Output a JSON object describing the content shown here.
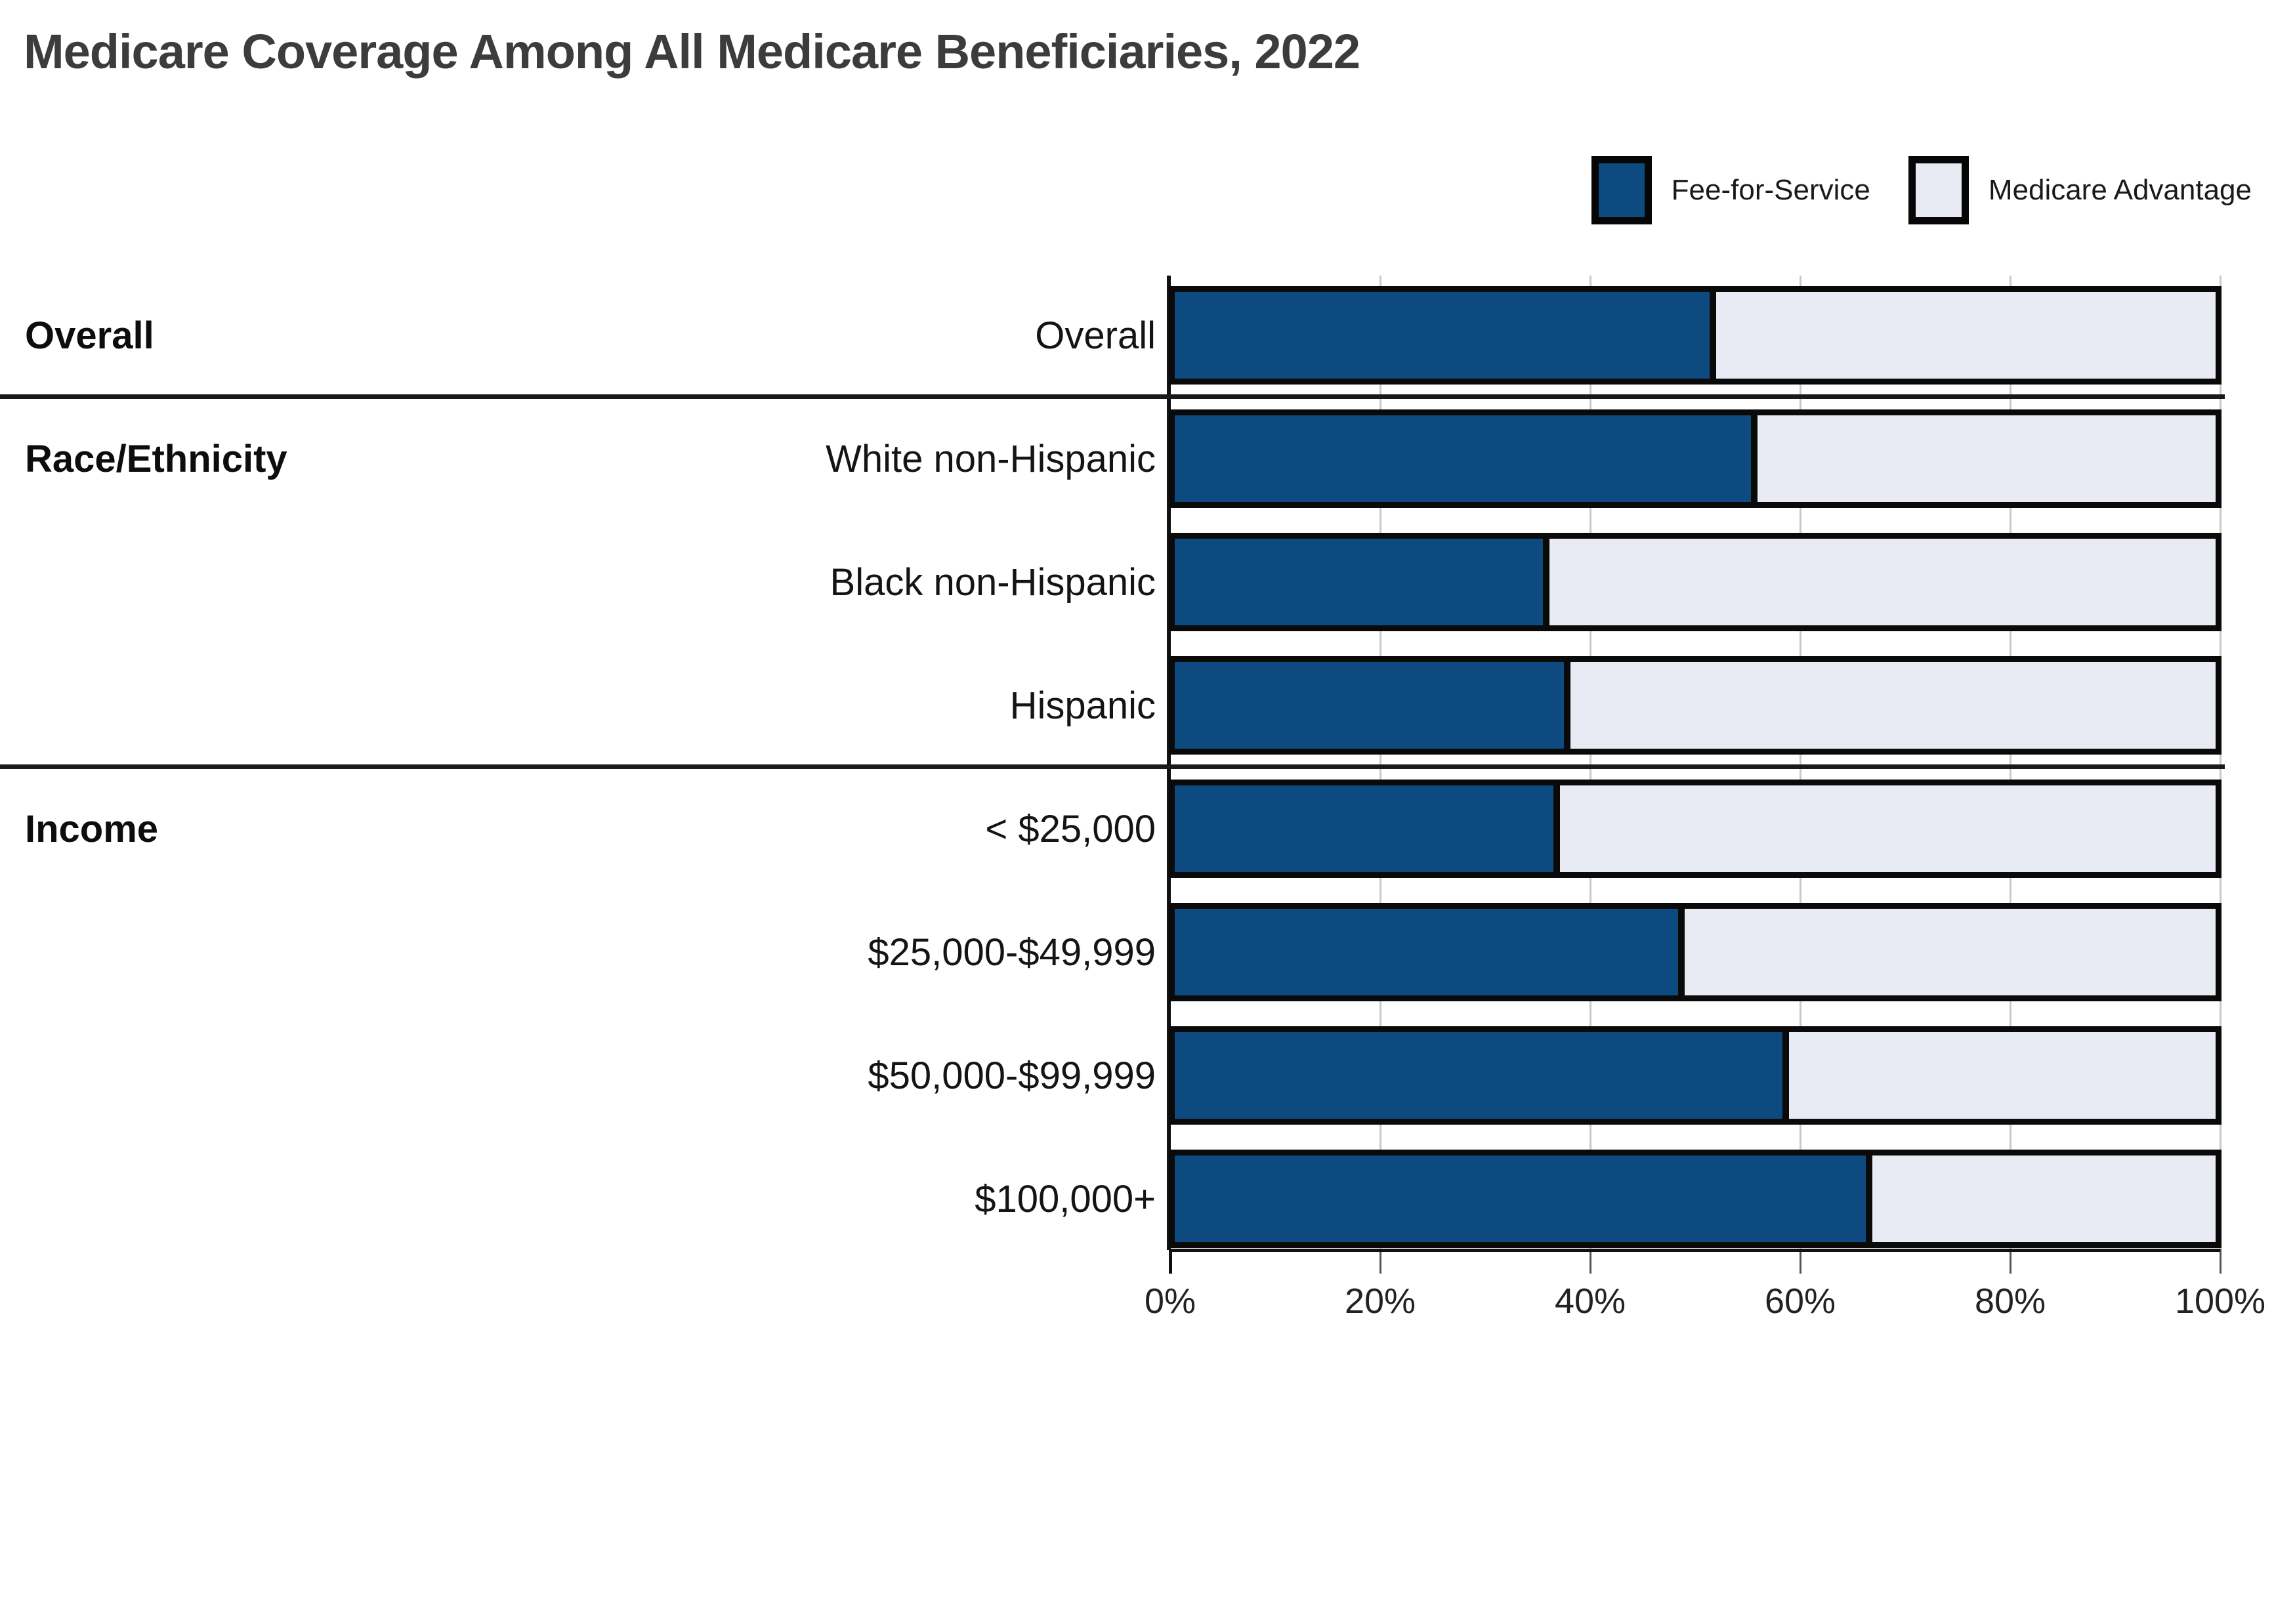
{
  "title": "Medicare Coverage Among All Medicare Beneficiaries, 2022",
  "legend": {
    "items": [
      {
        "label": "Fee-for-Service",
        "color": "#0d4a7f"
      },
      {
        "label": "Medicare Advantage",
        "color": "#e8ebf4"
      }
    ]
  },
  "colors": {
    "fee_for_service": "#0d4a7f",
    "medicare_advantage": "#e8ebf4",
    "bar_border": "#0a0a0a",
    "gridline": "#c9c9c9",
    "axis": "#111111",
    "title_text": "#3c3c3c"
  },
  "chart_data": {
    "type": "bar",
    "orientation": "horizontal",
    "stacked": true,
    "title": "Medicare Coverage Among All Medicare Beneficiaries, 2022",
    "xlabel": "",
    "ylabel": "",
    "xlim": [
      0,
      100
    ],
    "x_tick_labels": [
      "0%",
      "20%",
      "40%",
      "60%",
      "80%",
      "100%"
    ],
    "x_tick_values": [
      0,
      20,
      40,
      60,
      80,
      100
    ],
    "grid": true,
    "legend_position": "top-right",
    "series_names": [
      "Fee-for-Service",
      "Medicare Advantage"
    ],
    "groups": [
      {
        "label": "Overall",
        "rows": [
          {
            "label": "Overall",
            "fee_for_service": 52,
            "medicare_advantage": 48
          }
        ]
      },
      {
        "label": "Race/Ethnicity",
        "rows": [
          {
            "label": "White non-Hispanic",
            "fee_for_service": 56,
            "medicare_advantage": 44
          },
          {
            "label": "Black non-Hispanic",
            "fee_for_service": 36,
            "medicare_advantage": 64
          },
          {
            "label": "Hispanic",
            "fee_for_service": 38,
            "medicare_advantage": 62
          }
        ]
      },
      {
        "label": "Income",
        "rows": [
          {
            "label": "< $25,000",
            "fee_for_service": 37,
            "medicare_advantage": 63
          },
          {
            "label": "$25,000-$49,999",
            "fee_for_service": 49,
            "medicare_advantage": 51
          },
          {
            "label": "$50,000-$99,999",
            "fee_for_service": 59,
            "medicare_advantage": 41
          },
          {
            "label": "$100,000+",
            "fee_for_service": 67,
            "medicare_advantage": 33
          }
        ]
      }
    ]
  }
}
